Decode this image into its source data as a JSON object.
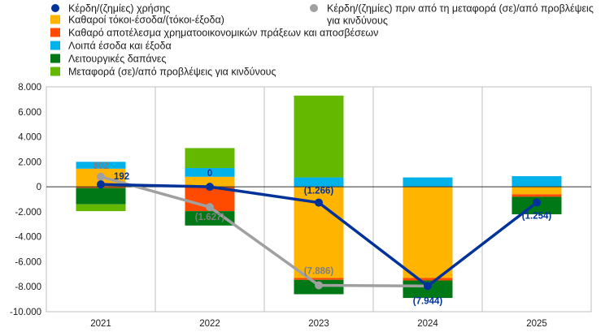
{
  "chart_data": {
    "type": "bar",
    "stacked": true,
    "categories": [
      "2021",
      "2022",
      "2023",
      "2024",
      "2025"
    ],
    "ylim": [
      -10000,
      8000
    ],
    "yticks": [
      8000,
      6000,
      4000,
      2000,
      0,
      -2000,
      -4000,
      -6000,
      -8000,
      -10000
    ],
    "ytick_labels": [
      "8.000",
      "6.000",
      "4.000",
      "2.000",
      "0",
      "-2.000",
      "-4.000",
      "-6.000",
      "-8.000",
      "-10.000"
    ],
    "grid": false,
    "legend_position": "top",
    "series": [
      {
        "name": "Καθαροί τόκοι-έσοδα/(τόκοι-έξοδα)",
        "color": "#FFB400",
        "values": [
          1450,
          800,
          -7300,
          -7300,
          -600
        ]
      },
      {
        "name": "Καθαρό αποτέλεσμα χρηματοοικονομικών πράξεων και αποσβέσεων",
        "color": "#FF4B00",
        "values": [
          -100,
          -1950,
          -150,
          -200,
          -200
        ]
      },
      {
        "name": "Λοιπά έσοδα και έξοδα",
        "color": "#00B1EA",
        "values": [
          550,
          700,
          750,
          750,
          850
        ]
      },
      {
        "name": "Λειτουργικές δαπάνες",
        "color": "#007816",
        "values": [
          -1300,
          -1150,
          -1150,
          -1400,
          -1400
        ]
      },
      {
        "name": "Μεταφορά (σε)/από προβλέψεις για κινδύνους",
        "color": "#65B800",
        "values": [
          -550,
          1600,
          6550,
          0,
          0
        ]
      }
    ],
    "lines": [
      {
        "name": "Κέρδη/(ζημίες) χρήσης",
        "color": "#003299",
        "values": [
          192,
          0,
          -1266,
          -7944,
          -1254
        ],
        "labels": [
          "192",
          "0",
          "(1.266)",
          "(7.944)",
          "(1.254)"
        ]
      },
      {
        "name": "Κέρδη/(ζημίες) πριν από τη μεταφορά (σε)/από προβλέψεις για κινδύνους",
        "color": "#A0A0A0",
        "values": [
          802,
          -1627,
          -7886,
          -7944
        ],
        "labels": [
          "802",
          "(1.627)",
          "(7.886)",
          ""
        ]
      }
    ]
  }
}
